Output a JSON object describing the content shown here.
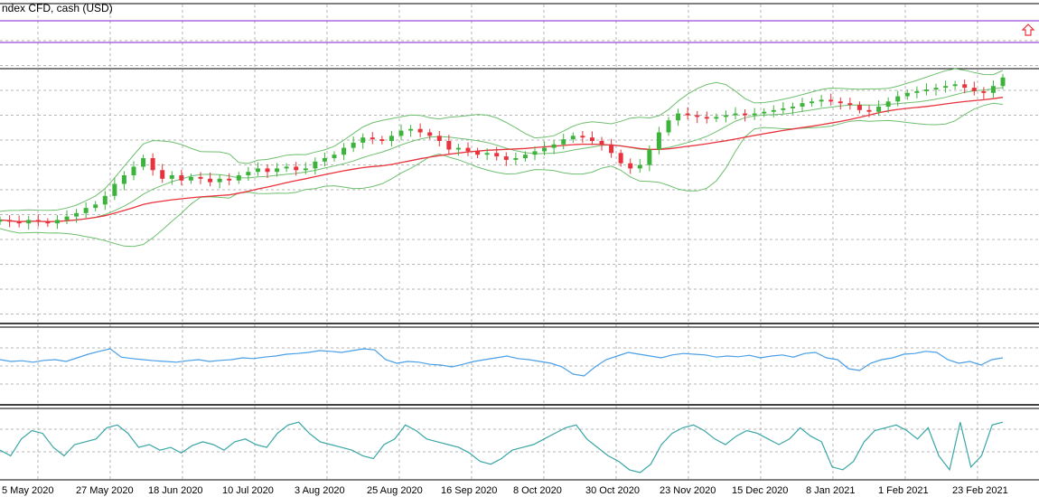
{
  "header": {
    "title": "ndex CFD, cash (USD)"
  },
  "colors": {
    "background": "#ffffff",
    "grid": "#b5b5b5",
    "bull_candle": "#3cb43c",
    "bear_candle": "#e8323c",
    "moving_average": "#e8323c",
    "bollinger": "#6fbf6f",
    "level_line": "#9b4ad8",
    "oscillator_1": "#4a9fe6",
    "oscillator_2": "#3aa6a6",
    "arrow": "#e8323c"
  },
  "icons": {
    "arrow": "up-arrow-icon"
  },
  "chart_data": [
    {
      "type": "candlestick",
      "title": "ndex CFD, cash (USD)",
      "x_tick_labels": [
        "5 May 2020",
        "27 May 2020",
        "18 Jun 2020",
        "10 Jul 2020",
        "3 Aug 2020",
        "25 Aug 2020",
        "16 Sep 2020",
        "8 Oct 2020",
        "30 Oct 2020",
        "23 Nov 2020",
        "15 Dec 2020",
        "8 Jan 2021",
        "1 Feb 2021",
        "23 Feb 2021"
      ],
      "grid": true,
      "overlays": [
        "moving average",
        "bollinger bands",
        "horizontal levels"
      ],
      "level_values": [
        0.96,
        0.92
      ],
      "close_path": [
        0.14,
        0.13,
        0.12,
        0.14,
        0.13,
        0.12,
        0.14,
        0.16,
        0.18,
        0.21,
        0.23,
        0.28,
        0.35,
        0.4,
        0.45,
        0.5,
        0.43,
        0.38,
        0.4,
        0.37,
        0.39,
        0.38,
        0.36,
        0.38,
        0.37,
        0.4,
        0.42,
        0.44,
        0.42,
        0.44,
        0.45,
        0.43,
        0.44,
        0.48,
        0.5,
        0.52,
        0.56,
        0.59,
        0.62,
        0.61,
        0.6,
        0.63,
        0.66,
        0.67,
        0.65,
        0.63,
        0.6,
        0.55,
        0.56,
        0.54,
        0.52,
        0.53,
        0.51,
        0.49,
        0.5,
        0.52,
        0.54,
        0.56,
        0.58,
        0.61,
        0.63,
        0.62,
        0.6,
        0.58,
        0.53,
        0.47,
        0.44,
        0.46,
        0.55,
        0.65,
        0.72,
        0.76,
        0.75,
        0.74,
        0.73,
        0.74,
        0.75,
        0.76,
        0.75,
        0.76,
        0.77,
        0.78,
        0.79,
        0.8,
        0.82,
        0.83,
        0.84,
        0.83,
        0.82,
        0.81,
        0.78,
        0.77,
        0.8,
        0.83,
        0.86,
        0.88,
        0.89,
        0.9,
        0.91,
        0.92,
        0.93,
        0.91,
        0.89,
        0.88,
        0.92,
        0.97
      ]
    },
    {
      "type": "line",
      "series": [
        {
          "values": [
            0.55,
            0.5,
            0.52,
            0.48,
            0.53,
            0.55,
            0.5,
            0.6,
            0.7,
            0.78,
            0.85,
            0.62,
            0.58,
            0.55,
            0.52,
            0.5,
            0.48,
            0.52,
            0.55,
            0.5,
            0.53,
            0.55,
            0.6,
            0.58,
            0.62,
            0.65,
            0.7,
            0.72,
            0.75,
            0.8,
            0.78,
            0.75,
            0.8,
            0.85,
            0.82,
            0.55,
            0.45,
            0.5,
            0.48,
            0.42,
            0.4,
            0.35,
            0.42,
            0.5,
            0.55,
            0.6,
            0.65,
            0.58,
            0.55,
            0.5,
            0.45,
            0.35,
            0.15,
            0.1,
            0.35,
            0.55,
            0.65,
            0.75,
            0.7,
            0.65,
            0.6,
            0.68,
            0.72,
            0.7,
            0.68,
            0.62,
            0.65,
            0.63,
            0.67,
            0.6,
            0.65,
            0.68,
            0.62,
            0.72,
            0.75,
            0.6,
            0.55,
            0.3,
            0.25,
            0.45,
            0.55,
            0.6,
            0.7,
            0.72,
            0.78,
            0.75,
            0.55,
            0.45,
            0.5,
            0.4,
            0.55,
            0.6
          ]
        }
      ]
    },
    {
      "type": "line",
      "series": [
        {
          "values": [
            0.4,
            0.3,
            0.6,
            0.75,
            0.7,
            0.45,
            0.3,
            0.5,
            0.55,
            0.6,
            0.8,
            0.85,
            0.7,
            0.45,
            0.5,
            0.4,
            0.45,
            0.35,
            0.48,
            0.55,
            0.5,
            0.4,
            0.55,
            0.6,
            0.5,
            0.45,
            0.7,
            0.85,
            0.9,
            0.7,
            0.55,
            0.5,
            0.45,
            0.4,
            0.3,
            0.25,
            0.5,
            0.6,
            0.85,
            0.75,
            0.6,
            0.55,
            0.5,
            0.45,
            0.35,
            0.2,
            0.15,
            0.25,
            0.4,
            0.45,
            0.5,
            0.6,
            0.7,
            0.8,
            0.85,
            0.6,
            0.45,
            0.3,
            0.2,
            0.05,
            0.0,
            0.15,
            0.5,
            0.7,
            0.8,
            0.85,
            0.75,
            0.6,
            0.5,
            0.65,
            0.75,
            0.7,
            0.6,
            0.5,
            0.6,
            0.8,
            0.65,
            0.55,
            0.1,
            0.05,
            0.2,
            0.55,
            0.75,
            0.8,
            0.85,
            0.75,
            0.6,
            0.8,
            0.3,
            0.05,
            0.9,
            0.1,
            0.3,
            0.85,
            0.9
          ]
        }
      ]
    }
  ]
}
